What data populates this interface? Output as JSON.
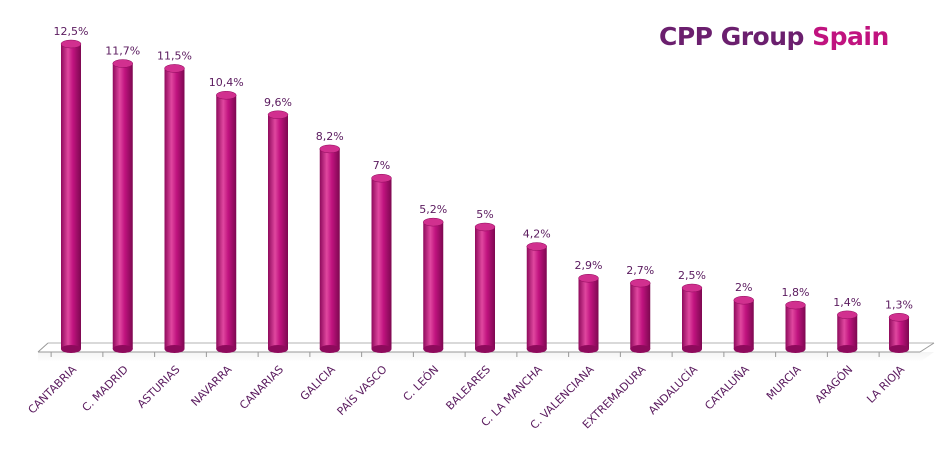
{
  "logo": {
    "main": "CPP Group",
    "accent": "Spain"
  },
  "colors": {
    "bar": "#c0137f",
    "bar_dark": "#8e0a5c",
    "bar_light": "#e0479f",
    "bar_top": "#d1308f",
    "label": "#5a1a5e",
    "axis": "#999999",
    "brand_main": "#6b1f6e",
    "brand_accent": "#c0137f"
  },
  "chart_data": {
    "type": "bar",
    "categories": [
      "CANTABRIA",
      "C. MADRID",
      "ASTURIAS",
      "NAVARRA",
      "CANARIAS",
      "GALICIA",
      "PAÍS VASCO",
      "C. LEÓN",
      "BALEARES",
      "C. LA MANCHA",
      "C. VALENCIANA",
      "EXTREMADURA",
      "ANDALUCÍA",
      "CATALUÑA",
      "MURCIA",
      "ARAGÓN",
      "LA RIOJA"
    ],
    "values": [
      12.5,
      11.7,
      11.5,
      10.4,
      9.6,
      8.2,
      7,
      5.2,
      5,
      4.2,
      2.9,
      2.7,
      2.5,
      2,
      1.8,
      1.4,
      1.3
    ],
    "data_labels": [
      "12,5%",
      "11,7%",
      "11,5%",
      "10,4%",
      "9,6%",
      "8,2%",
      "7%",
      "5,2%",
      "5%",
      "4,2%",
      "2,9%",
      "2,7%",
      "2,5%",
      "2%",
      "1,8%",
      "1,4%",
      "1,3%"
    ],
    "title": "",
    "xlabel": "",
    "ylabel": "",
    "ylim": [
      0,
      12.5
    ],
    "grid": false,
    "legend": "none"
  }
}
